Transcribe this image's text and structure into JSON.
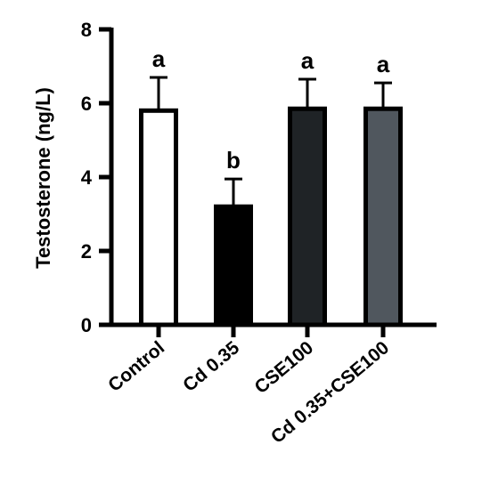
{
  "chart_data": {
    "type": "bar",
    "ylabel": "Testosterone (ng/L)",
    "categories": [
      "Control",
      "Cd 0.35",
      "CSE100",
      "Cd 0.35+CSE100"
    ],
    "values": [
      5.8,
      3.2,
      5.85,
      5.85
    ],
    "errors": [
      0.9,
      0.75,
      0.8,
      0.7
    ],
    "letters": [
      "a",
      "b",
      "a",
      "a"
    ],
    "colors": [
      "#ffffff",
      "#000000",
      "#1f2326",
      "#50575e"
    ],
    "ylim": [
      0,
      8
    ],
    "yticks": [
      0,
      2,
      4,
      6,
      8
    ]
  }
}
